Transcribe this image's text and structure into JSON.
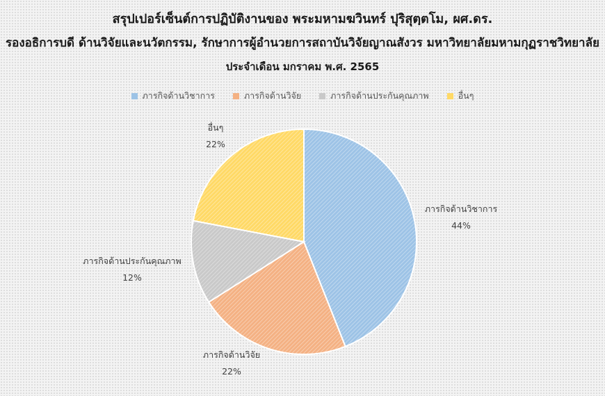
{
  "chart_data": {
    "type": "pie",
    "title": [
      "สรุปเปอร์เซ็นต์การปฏิบัติงานของ พระมหามฆวินทร์ ปุริสุตฺตโม, ผศ.ดร.",
      "รองอธิการบดี ด้านวิจัยและนวัตกรรม, รักษาการผู้อำนวยการสถาบันวิจัยญาณสังวร มหาวิทยาลัยมหามกุฏราชวิทยาลัย",
      "ประจำเดือน มกราคม พ.ศ. 2565"
    ],
    "categories": [
      "ภารกิจด้านวิชาการ",
      "ภารกิจด้านวิจัย",
      "ภารกิจด้านประกันคุณภาพ",
      "อื่นๆ"
    ],
    "values": [
      44,
      22,
      12,
      22
    ],
    "value_labels": [
      "44%",
      "22%",
      "12%",
      "22%"
    ],
    "colors": [
      "#9dc3e6",
      "#f4b183",
      "#c9c9c9",
      "#ffd966"
    ],
    "legend_position": "top"
  }
}
